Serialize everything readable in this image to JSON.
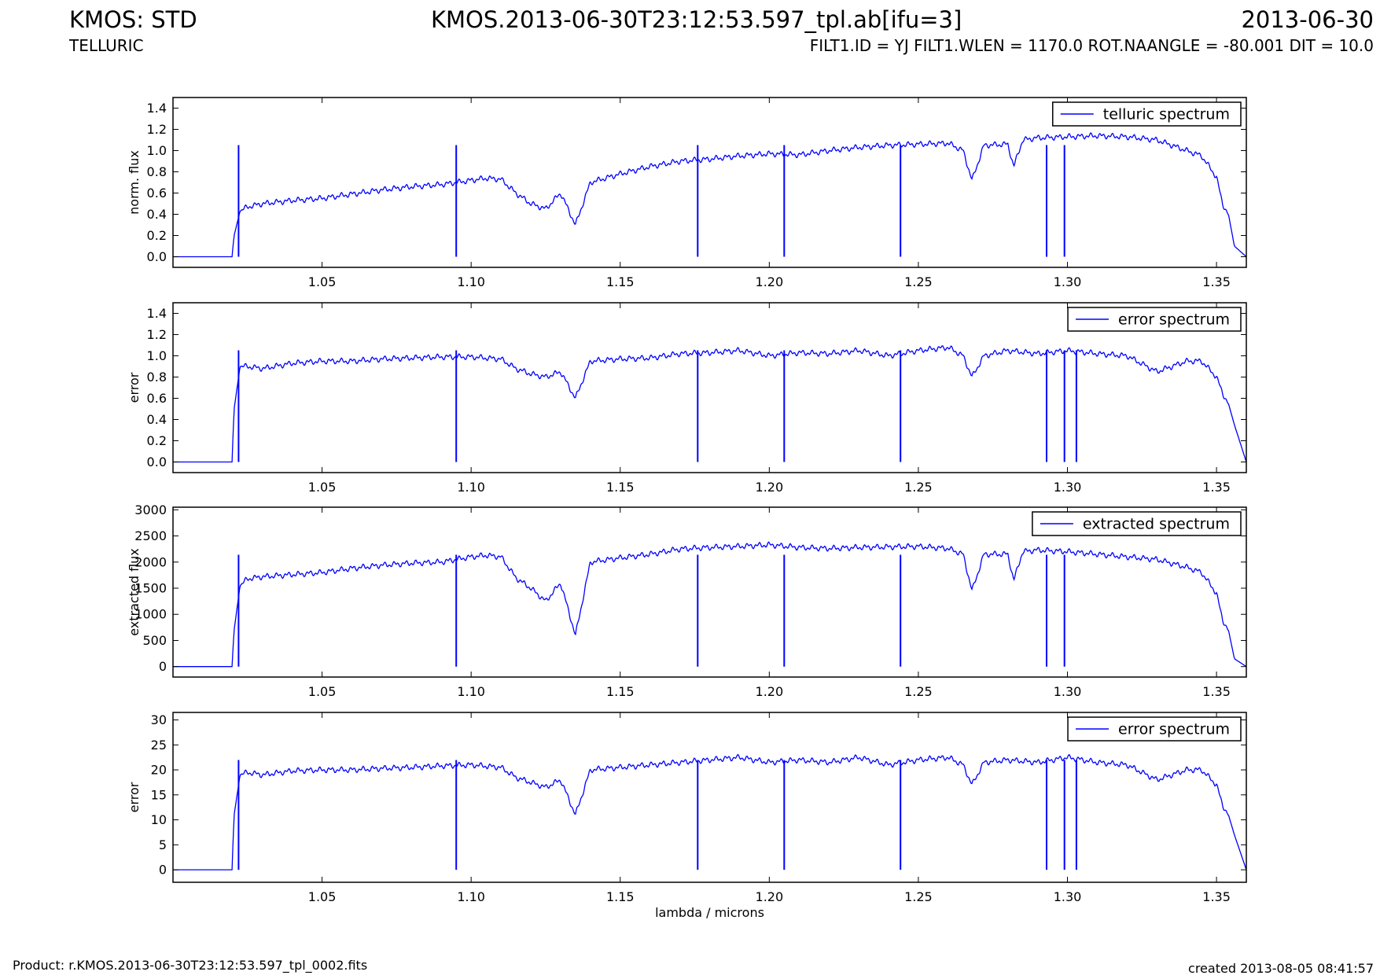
{
  "header": {
    "title_left": "KMOS: STD",
    "title_center": "KMOS.2013-06-30T23:12:53.597_tpl.ab[ifu=3]",
    "title_right": "2013-06-30",
    "subtitle_left": "TELLURIC",
    "subtitle_right": "FILT1.ID = YJ FILT1.WLEN = 1170.0 ROT.NAANGLE = -80.001 DIT = 10.0"
  },
  "footer": {
    "product": "Product: r.KMOS.2013-06-30T23:12:53.597_tpl_0002.fits",
    "created": "created 2013-08-05 08:41:57"
  },
  "colors": {
    "line": "#0000ff",
    "axes": "#000000",
    "background": "#ffffff"
  },
  "chart_data": [
    {
      "type": "line",
      "series": [
        {
          "name": "telluric spectrum",
          "x": [
            1.0,
            1.0198,
            1.0205,
            1.0225,
            1.025,
            1.03,
            1.04,
            1.05,
            1.06,
            1.07,
            1.08,
            1.09,
            1.095,
            1.1,
            1.105,
            1.11,
            1.115,
            1.12,
            1.125,
            1.13,
            1.135,
            1.14,
            1.15,
            1.16,
            1.17,
            1.18,
            1.19,
            1.2,
            1.21,
            1.22,
            1.23,
            1.24,
            1.25,
            1.26,
            1.265,
            1.268,
            1.272,
            1.28,
            1.282,
            1.285,
            1.29,
            1.3,
            1.31,
            1.32,
            1.33,
            1.34,
            1.345,
            1.35,
            1.352,
            1.354,
            1.356,
            1.36
          ],
          "y": [
            0.0,
            0.0,
            0.2,
            0.43,
            0.47,
            0.5,
            0.53,
            0.55,
            0.59,
            0.63,
            0.66,
            0.68,
            0.7,
            0.72,
            0.74,
            0.73,
            0.6,
            0.5,
            0.45,
            0.6,
            0.3,
            0.7,
            0.78,
            0.85,
            0.9,
            0.92,
            0.95,
            0.97,
            0.96,
            1.0,
            1.03,
            1.05,
            1.06,
            1.07,
            1.0,
            0.72,
            1.05,
            1.06,
            0.85,
            1.1,
            1.12,
            1.13,
            1.14,
            1.13,
            1.1,
            1.0,
            0.95,
            0.75,
            0.5,
            0.4,
            0.1,
            0.0
          ]
        }
      ],
      "drops": [
        1.022,
        1.095,
        1.176,
        1.205,
        1.244,
        1.293,
        1.299
      ],
      "xlim": [
        1.0,
        1.36
      ],
      "ylim": [
        -0.1,
        1.5
      ],
      "xticks": [
        "1.05",
        "1.10",
        "1.15",
        "1.20",
        "1.25",
        "1.30",
        "1.35"
      ],
      "yticks": [
        "0.0",
        "0.2",
        "0.4",
        "0.6",
        "0.8",
        "1.0",
        "1.2",
        "1.4"
      ],
      "xlabel": "",
      "ylabel": "norm. flux",
      "legend_position": "top-right"
    },
    {
      "type": "line",
      "series": [
        {
          "name": "error spectrum",
          "x": [
            1.0,
            1.0198,
            1.0205,
            1.0225,
            1.025,
            1.03,
            1.04,
            1.05,
            1.06,
            1.07,
            1.08,
            1.09,
            1.1,
            1.11,
            1.115,
            1.12,
            1.125,
            1.13,
            1.135,
            1.14,
            1.15,
            1.16,
            1.17,
            1.18,
            1.19,
            1.2,
            1.21,
            1.22,
            1.23,
            1.24,
            1.25,
            1.26,
            1.265,
            1.268,
            1.272,
            1.28,
            1.29,
            1.3,
            1.31,
            1.32,
            1.33,
            1.34,
            1.345,
            1.35,
            1.352,
            1.354,
            1.356,
            1.36
          ],
          "y": [
            0.0,
            0.0,
            0.5,
            0.9,
            0.9,
            0.88,
            0.93,
            0.95,
            0.95,
            0.97,
            0.98,
            0.99,
            0.99,
            0.97,
            0.88,
            0.83,
            0.8,
            0.85,
            0.6,
            0.95,
            0.97,
            0.98,
            1.02,
            1.03,
            1.05,
            1.0,
            1.03,
            1.02,
            1.05,
            1.0,
            1.05,
            1.08,
            1.0,
            0.8,
            1.0,
            1.05,
            1.02,
            1.05,
            1.02,
            1.0,
            0.85,
            0.95,
            0.95,
            0.8,
            0.65,
            0.55,
            0.35,
            0.0
          ]
        }
      ],
      "drops": [
        1.022,
        1.095,
        1.176,
        1.205,
        1.244,
        1.293,
        1.299,
        1.303
      ],
      "xlim": [
        1.0,
        1.36
      ],
      "ylim": [
        -0.1,
        1.5
      ],
      "xticks": [
        "1.05",
        "1.10",
        "1.15",
        "1.20",
        "1.25",
        "1.30",
        "1.35"
      ],
      "yticks": [
        "0.0",
        "0.2",
        "0.4",
        "0.6",
        "0.8",
        "1.0",
        "1.2",
        "1.4"
      ],
      "xlabel": "",
      "ylabel": "error",
      "legend_position": "top-right"
    },
    {
      "type": "line",
      "series": [
        {
          "name": "extracted spectrum",
          "x": [
            1.0,
            1.0198,
            1.0205,
            1.0225,
            1.025,
            1.03,
            1.04,
            1.05,
            1.06,
            1.07,
            1.08,
            1.09,
            1.095,
            1.1,
            1.105,
            1.11,
            1.115,
            1.12,
            1.125,
            1.13,
            1.135,
            1.14,
            1.15,
            1.16,
            1.17,
            1.18,
            1.19,
            1.2,
            1.21,
            1.22,
            1.23,
            1.24,
            1.25,
            1.26,
            1.265,
            1.268,
            1.272,
            1.28,
            1.282,
            1.285,
            1.29,
            1.3,
            1.31,
            1.32,
            1.33,
            1.34,
            1.345,
            1.35,
            1.352,
            1.354,
            1.356,
            1.36
          ],
          "y": [
            0,
            0,
            700,
            1550,
            1680,
            1720,
            1760,
            1800,
            1880,
            1940,
            1980,
            2000,
            2050,
            2100,
            2130,
            2100,
            1700,
            1500,
            1250,
            1600,
            600,
            2000,
            2080,
            2150,
            2250,
            2280,
            2300,
            2330,
            2280,
            2260,
            2280,
            2290,
            2300,
            2260,
            2150,
            1450,
            2150,
            2150,
            1650,
            2200,
            2230,
            2200,
            2150,
            2100,
            2050,
            1900,
            1800,
            1400,
            900,
            700,
            150,
            0
          ]
        }
      ],
      "drops": [
        1.022,
        1.095,
        1.176,
        1.205,
        1.244,
        1.293,
        1.299
      ],
      "xlim": [
        1.0,
        1.36
      ],
      "ylim": [
        -200,
        3050
      ],
      "xticks": [
        "1.05",
        "1.10",
        "1.15",
        "1.20",
        "1.25",
        "1.30",
        "1.35"
      ],
      "yticks": [
        "0",
        "500",
        "1000",
        "1500",
        "2000",
        "2500",
        "3000"
      ],
      "xlabel": "",
      "ylabel": "extracted flux",
      "legend_position": "top-right"
    },
    {
      "type": "line",
      "series": [
        {
          "name": "error spectrum",
          "x": [
            1.0,
            1.0198,
            1.0205,
            1.0225,
            1.025,
            1.03,
            1.04,
            1.05,
            1.06,
            1.07,
            1.08,
            1.09,
            1.1,
            1.11,
            1.115,
            1.12,
            1.125,
            1.13,
            1.135,
            1.14,
            1.15,
            1.16,
            1.17,
            1.18,
            1.19,
            1.2,
            1.21,
            1.22,
            1.23,
            1.24,
            1.25,
            1.26,
            1.265,
            1.268,
            1.272,
            1.28,
            1.29,
            1.3,
            1.31,
            1.32,
            1.33,
            1.34,
            1.345,
            1.35,
            1.352,
            1.354,
            1.356,
            1.36
          ],
          "y": [
            0,
            0,
            11,
            19,
            19.5,
            19,
            19.8,
            20,
            20,
            20.3,
            20.5,
            20.8,
            21,
            20.5,
            18.5,
            17.5,
            16.5,
            18,
            11,
            20,
            20.5,
            21,
            21.5,
            22,
            22.5,
            21.5,
            22,
            21.5,
            22.5,
            21,
            22,
            22.5,
            21,
            17,
            21.5,
            22,
            21.5,
            22.5,
            21.5,
            21,
            18,
            20,
            20,
            17,
            13,
            11,
            7,
            0
          ]
        }
      ],
      "drops": [
        1.022,
        1.095,
        1.176,
        1.205,
        1.244,
        1.293,
        1.299,
        1.303
      ],
      "xlim": [
        1.0,
        1.36
      ],
      "ylim": [
        -2.5,
        31.5
      ],
      "xticks": [
        "1.05",
        "1.10",
        "1.15",
        "1.20",
        "1.25",
        "1.30",
        "1.35"
      ],
      "yticks": [
        "0",
        "5",
        "10",
        "15",
        "20",
        "25",
        "30"
      ],
      "xlabel": "lambda / microns",
      "ylabel": "error",
      "legend_position": "top-right"
    }
  ]
}
